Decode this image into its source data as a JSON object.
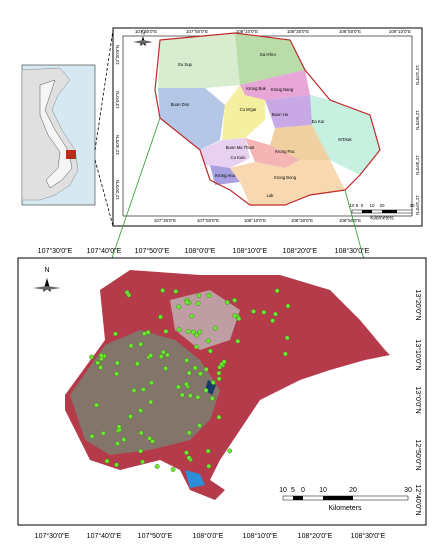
{
  "top_map": {
    "north": "N",
    "x_labels_top": [
      "107°30'0\"E",
      "107°50'0\"E",
      "108°10'0\"E",
      "108°30'0\"E",
      "108°50'0\"E",
      "109°10'0\"E"
    ],
    "x_labels_bottom": [
      "107°30'0\"E",
      "107°50'0\"E",
      "108°10'0\"E",
      "108°30'0\"E",
      "108°50'0\"E"
    ],
    "y_labels_left": [
      "13°20'0\"N",
      "13°0'0\"N",
      "12°40'0\"N",
      "12°20'0\"N"
    ],
    "y_labels_right": [
      "13°10'0\"N",
      "12°50'0\"N",
      "12°30'0\"N",
      "12°10'0\"N"
    ],
    "districts": [
      "Ea Sup",
      "Ea H'leo",
      "Buon Don",
      "Cu M'gar",
      "Krong Buk",
      "Krong Nang",
      "Buon Ho",
      "Ea Kar",
      "M'Drak",
      "Buon Ma Thuot",
      "Krong Pac",
      "Cu Kuin",
      "Krong Ana",
      "Krong Bong",
      "Lak"
    ],
    "scale": [
      "10",
      "5",
      "0",
      "10",
      "20",
      "30"
    ],
    "scale_unit": "Kilometers"
  },
  "bottom_map": {
    "north": "N",
    "x_labels_top": [
      "107°30'0\"E",
      "107°40'0\"E",
      "107°50'0\"E",
      "108°0'0\"E",
      "108°10'0\"E",
      "108°20'0\"E",
      "108°30'0\"E"
    ],
    "x_labels_bottom": [
      "107°30'0\"E",
      "107°40'0\"E",
      "107°50'0\"E",
      "108°0'0\"E",
      "108°10'0\"E",
      "108°20'0\"E",
      "108°30'0\"E"
    ],
    "y_labels_right": [
      "13°20'0\"N",
      "13°10'0\"N",
      "13°0'0\"N",
      "12°50'0\"N",
      "12°40'0\"N"
    ],
    "scale": [
      "10",
      "5",
      "0",
      "10",
      "20",
      "30"
    ],
    "scale_unit": "Kilometers"
  }
}
